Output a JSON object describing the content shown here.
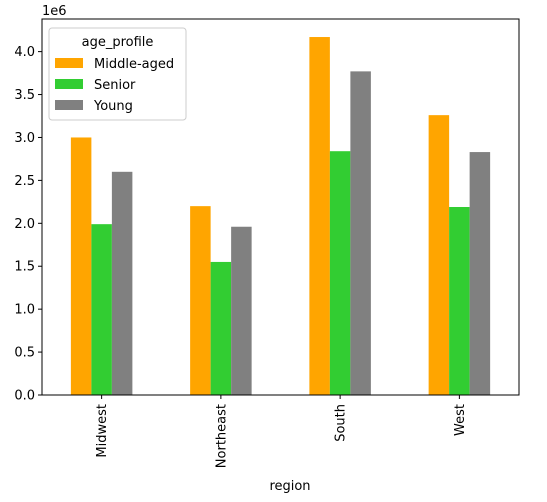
{
  "chart_data": {
    "type": "bar",
    "categories": [
      "Midwest",
      "Northeast",
      "South",
      "West"
    ],
    "series": [
      {
        "name": "Middle-aged",
        "values": [
          3000000,
          2200000,
          4170000,
          3260000
        ],
        "color": "#ffa500"
      },
      {
        "name": "Senior",
        "values": [
          1990000,
          1550000,
          2840000,
          2190000
        ],
        "color": "#32cd32"
      },
      {
        "name": "Young",
        "values": [
          2600000,
          1960000,
          3770000,
          2830000
        ],
        "color": "#808080"
      }
    ],
    "xlabel": "region",
    "ylabel": "",
    "ylim": [
      0,
      4380000
    ],
    "y_ticks": [
      0,
      500000,
      1000000,
      1500000,
      2000000,
      2500000,
      3000000,
      3500000,
      4000000
    ],
    "y_tick_labels": [
      "0.0",
      "0.5",
      "1.0",
      "1.5",
      "2.0",
      "2.5",
      "3.0",
      "3.5",
      "4.0"
    ],
    "y_offset_label": "1e6",
    "legend_title": "age_profile",
    "legend_position": "upper-left",
    "grid": false
  }
}
